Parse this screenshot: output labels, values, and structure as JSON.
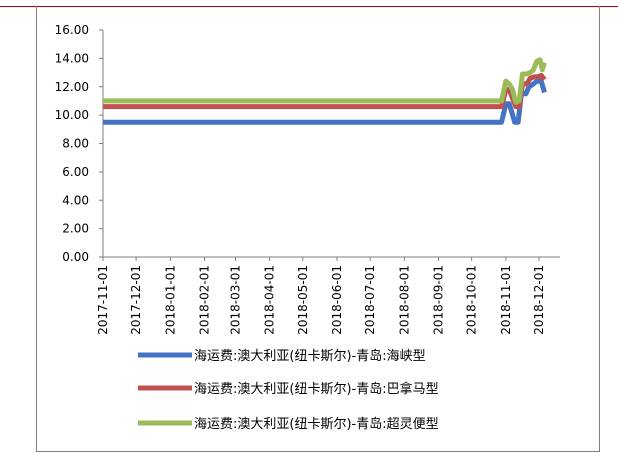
{
  "chart_data": {
    "type": "line",
    "title": "",
    "xlabel": "",
    "ylabel": "",
    "ylim": [
      0,
      16
    ],
    "y_ticks": [
      "0.00",
      "2.00",
      "4.00",
      "6.00",
      "8.00",
      "10.00",
      "12.00",
      "14.00",
      "16.00"
    ],
    "x_tick_labels": [
      "2017-11-01",
      "2017-12-01",
      "2018-01-01",
      "2018-02-01",
      "2018-03-01",
      "2018-04-01",
      "2018-05-01",
      "2018-06-01",
      "2018-07-01",
      "2018-08-01",
      "2018-09-01",
      "2018-10-01",
      "2018-11-01",
      "2018-12-01"
    ],
    "x_tick_dates": [
      "2017-11-01",
      "2017-12-01",
      "2018-01-01",
      "2018-02-01",
      "2018-03-01",
      "2018-04-01",
      "2018-05-01",
      "2018-06-01",
      "2018-07-01",
      "2018-08-01",
      "2018-09-01",
      "2018-10-01",
      "2018-11-01",
      "2018-12-01"
    ],
    "x_range": [
      "2017-11-01",
      "2018-12-20"
    ],
    "grid": false,
    "legend_position": "bottom",
    "series": [
      {
        "name": "海运费:澳大利亚(纽卡斯尔)-青岛:海峡型",
        "color": "#4472c4",
        "points": [
          [
            "2017-11-01",
            9.5
          ],
          [
            "2018-10-25",
            9.5
          ],
          [
            "2018-10-28",
            9.5
          ],
          [
            "2018-11-01",
            10.8
          ],
          [
            "2018-11-04",
            10.8
          ],
          [
            "2018-11-06",
            10.3
          ],
          [
            "2018-11-09",
            9.5
          ],
          [
            "2018-11-12",
            9.5
          ],
          [
            "2018-11-15",
            11.5
          ],
          [
            "2018-11-19",
            11.5
          ],
          [
            "2018-11-22",
            12.0
          ],
          [
            "2018-11-26",
            12.2
          ],
          [
            "2018-11-29",
            12.4
          ],
          [
            "2018-12-01",
            12.4
          ],
          [
            "2018-12-03",
            12.4
          ],
          [
            "2018-12-06",
            11.6
          ]
        ]
      },
      {
        "name": "海运费:澳大利亚(纽卡斯尔)-青岛:巴拿马型",
        "color": "#c0504d",
        "points": [
          [
            "2017-11-01",
            10.6
          ],
          [
            "2018-10-28",
            10.6
          ],
          [
            "2018-11-01",
            11.8
          ],
          [
            "2018-11-04",
            11.8
          ],
          [
            "2018-11-07",
            11.2
          ],
          [
            "2018-11-10",
            10.6
          ],
          [
            "2018-11-13",
            10.6
          ],
          [
            "2018-11-16",
            12.2
          ],
          [
            "2018-11-20",
            12.2
          ],
          [
            "2018-11-23",
            12.6
          ],
          [
            "2018-11-27",
            12.7
          ],
          [
            "2018-11-30",
            12.7
          ],
          [
            "2018-12-03",
            12.8
          ],
          [
            "2018-12-06",
            12.5
          ]
        ]
      },
      {
        "name": "海运费:澳大利亚(纽卡斯尔)-青岛:超灵便型",
        "color": "#9bbb59",
        "points": [
          [
            "2017-11-01",
            11.0
          ],
          [
            "2018-10-28",
            11.0
          ],
          [
            "2018-11-01",
            12.4
          ],
          [
            "2018-11-04",
            12.2
          ],
          [
            "2018-11-07",
            11.8
          ],
          [
            "2018-11-10",
            10.9
          ],
          [
            "2018-11-13",
            11.0
          ],
          [
            "2018-11-16",
            12.9
          ],
          [
            "2018-11-20",
            12.9
          ],
          [
            "2018-11-23",
            13.0
          ],
          [
            "2018-11-26",
            13.2
          ],
          [
            "2018-11-29",
            13.8
          ],
          [
            "2018-12-02",
            13.9
          ],
          [
            "2018-12-04",
            13.2
          ],
          [
            "2018-12-06",
            13.7
          ]
        ]
      }
    ]
  }
}
